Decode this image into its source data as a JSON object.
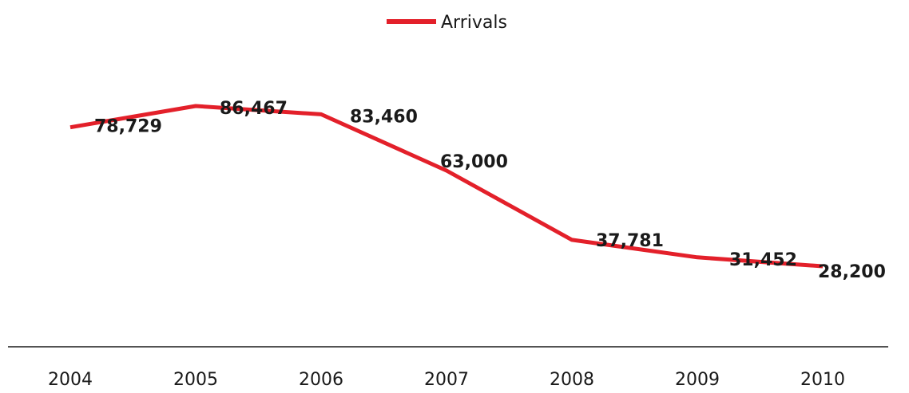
{
  "chart_data": {
    "type": "line",
    "title": "",
    "xlabel": "",
    "ylabel": "",
    "categories": [
      "2004",
      "2005",
      "2006",
      "2007",
      "2008",
      "2009",
      "2010"
    ],
    "series": [
      {
        "name": "Arrivals",
        "color": "#e3202a",
        "values": [
          78729,
          86467,
          83460,
          63000,
          37781,
          31452,
          28200
        ],
        "data_labels": [
          "78,729",
          "86,467",
          "83,460",
          "63,000",
          "37,781",
          "31,452",
          "28,200"
        ]
      }
    ],
    "legend": {
      "position": "top-center"
    },
    "grid": false,
    "y_axis_visible": false,
    "x_axis_line_color": "#1a1a1a"
  }
}
